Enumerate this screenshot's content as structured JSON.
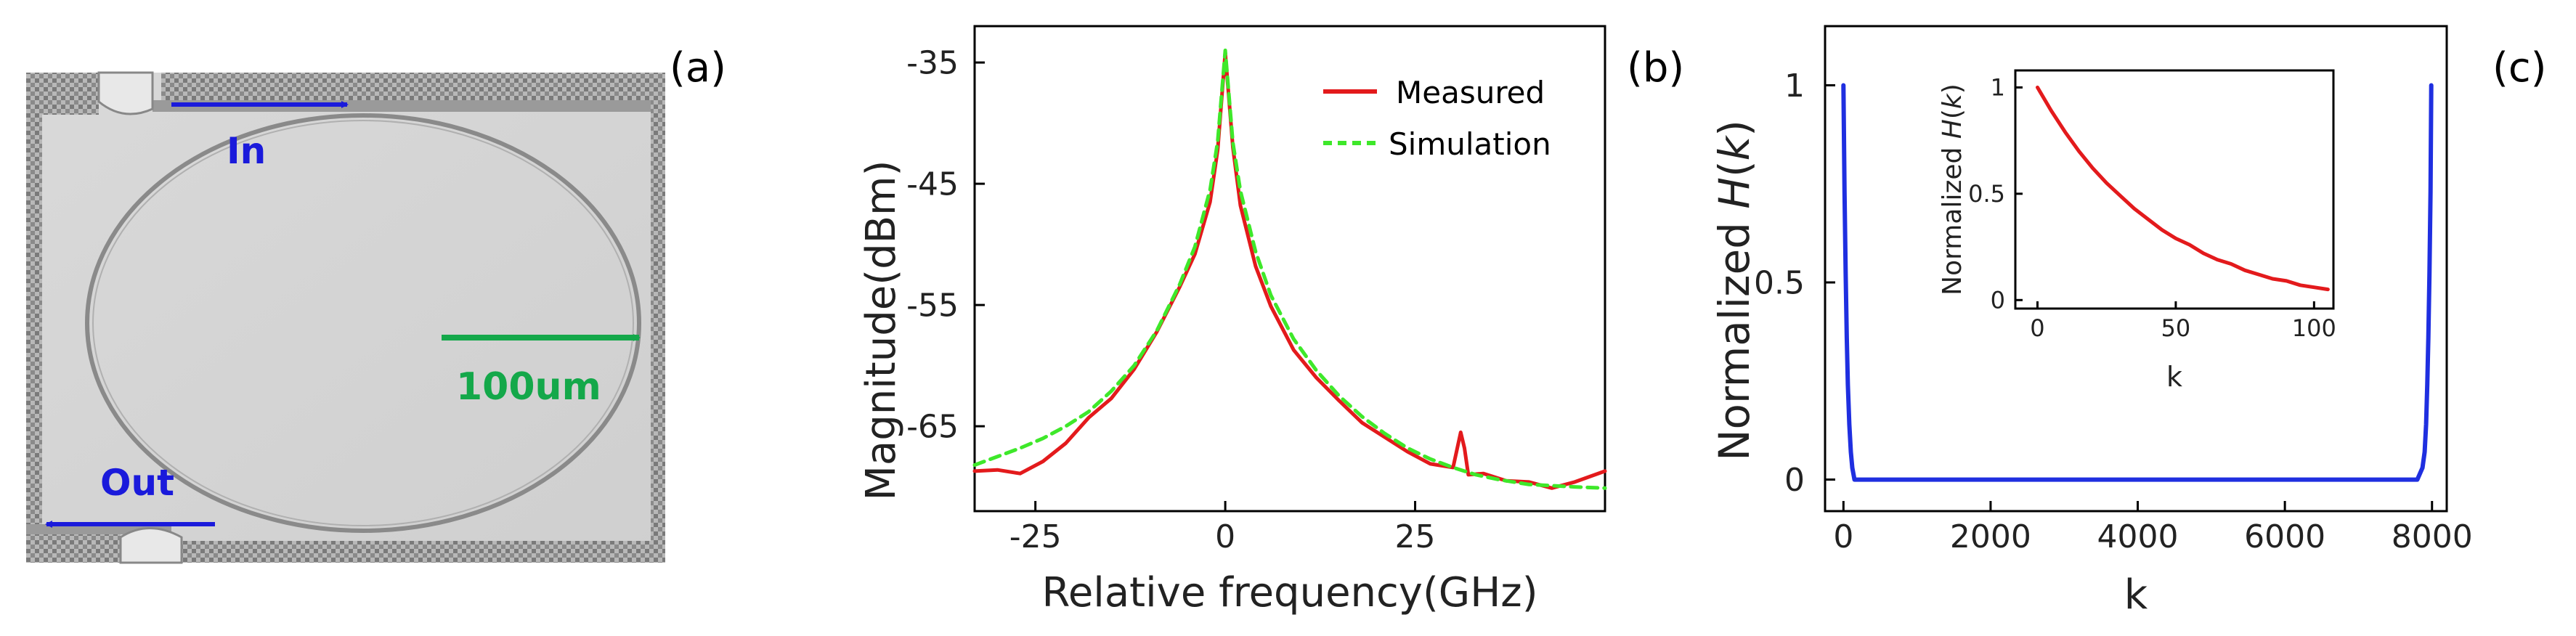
{
  "panels": {
    "a": {
      "label": "(a)",
      "in_label": "In",
      "out_label": "Out",
      "scale_label": "100um",
      "colors": {
        "in_arrow": "#1a1adb",
        "out_arrow": "#1a1adb",
        "scale_arrow": "#14a84a"
      }
    },
    "b": {
      "label": "(b)"
    },
    "c": {
      "label": "(c)"
    }
  },
  "chart_data": [
    {
      "type": "line",
      "title": "",
      "xlabel": "Relative frequency(GHz)",
      "ylabel": "Magnitude(dBm)",
      "xlim": [
        -33,
        50
      ],
      "ylim": [
        -72,
        -32
      ],
      "xticks": [
        -25,
        0,
        25
      ],
      "xtick_labels": [
        "-25",
        "0",
        "25"
      ],
      "yticks": [
        -35,
        -45,
        -55,
        -65
      ],
      "ytick_labels": [
        "-35",
        "-45",
        "-55",
        "-65"
      ],
      "legend_position": "top-right",
      "series": [
        {
          "name": "Measured",
          "color": "#e31a1c",
          "style": "solid",
          "x": [
            -33,
            -30,
            -27,
            -24,
            -21,
            -18,
            -15,
            -12,
            -9,
            -6,
            -4,
            -2,
            -1,
            0,
            1,
            2,
            4,
            6,
            9,
            12,
            15,
            18,
            21,
            24,
            27,
            30,
            31,
            31.5,
            32,
            34,
            37,
            40,
            43,
            46,
            50
          ],
          "y": [
            -68.7,
            -68.6,
            -68.9,
            -67.9,
            -66.4,
            -64.3,
            -62.7,
            -60.3,
            -57.2,
            -53.5,
            -50.8,
            -46.5,
            -42.2,
            -34.2,
            -42.0,
            -46.8,
            -51.8,
            -55.1,
            -58.7,
            -61.0,
            -62.9,
            -64.7,
            -65.9,
            -67.1,
            -68.1,
            -68.4,
            -65.5,
            -66.8,
            -69.0,
            -68.9,
            -69.5,
            -69.6,
            -70.1,
            -69.6,
            -68.7
          ]
        },
        {
          "name": "Simulation",
          "color": "#3ee82a",
          "style": "dashed",
          "x": [
            -33,
            -30,
            -27,
            -24,
            -21,
            -18,
            -15,
            -12,
            -9,
            -6,
            -4,
            -2,
            -1,
            0,
            1,
            2,
            4,
            6,
            9,
            12,
            15,
            18,
            21,
            24,
            27,
            30,
            33,
            36,
            40,
            43,
            46,
            50
          ],
          "y": [
            -68.2,
            -67.5,
            -66.8,
            -66.0,
            -65.0,
            -63.8,
            -62.1,
            -60.0,
            -57.1,
            -53.3,
            -50.2,
            -45.5,
            -41.5,
            -34.0,
            -41.6,
            -45.6,
            -50.6,
            -54.2,
            -57.8,
            -60.4,
            -62.5,
            -64.2,
            -65.6,
            -66.8,
            -67.7,
            -68.4,
            -69.0,
            -69.4,
            -69.8,
            -69.9,
            -70.0,
            -70.1
          ]
        }
      ]
    },
    {
      "type": "line",
      "title": "",
      "xlabel": "k",
      "ylabel": "Normalized H(k)",
      "ylabel_prefix": "Normalized ",
      "ylabel_var": "H",
      "ylabel_paren_open": "(",
      "ylabel_arg": "k",
      "ylabel_paren_close": ")",
      "xlim": [
        -250,
        8200
      ],
      "ylim": [
        -0.08,
        1.15
      ],
      "xticks": [
        0,
        2000,
        4000,
        6000,
        8000
      ],
      "xtick_labels": [
        "0",
        "2000",
        "4000",
        "6000",
        "8000"
      ],
      "yticks": [
        0,
        0.5,
        1
      ],
      "ytick_labels": [
        "0",
        "0.5",
        "1"
      ],
      "series": [
        {
          "name": "H(k)",
          "color": "#1f2fe0",
          "x": [
            0,
            15,
            30,
            45,
            60,
            80,
            100,
            120,
            150,
            400,
            2000,
            4000,
            6000,
            7600,
            7800,
            7870,
            7900,
            7920,
            7935,
            7950,
            7965,
            7980,
            7990
          ],
          "y": [
            1.0,
            0.73,
            0.52,
            0.36,
            0.24,
            0.14,
            0.07,
            0.03,
            0.0,
            0.0,
            0.0,
            0.0,
            0.0,
            0.0,
            0.0,
            0.03,
            0.07,
            0.14,
            0.24,
            0.36,
            0.52,
            0.73,
            1.0
          ]
        }
      ]
    },
    {
      "type": "line",
      "title": "",
      "xlabel": "k",
      "ylabel": "Normalized H(k)",
      "ylabel_prefix": "Normalized ",
      "ylabel_var": "H",
      "ylabel_paren_open": "(",
      "ylabel_arg": "k",
      "ylabel_paren_close": ")",
      "xlim": [
        -8,
        107
      ],
      "ylim": [
        -0.04,
        1.08
      ],
      "xticks": [
        0,
        50,
        100
      ],
      "xtick_labels": [
        "0",
        "50",
        "100"
      ],
      "yticks": [
        0,
        0.5,
        1
      ],
      "ytick_labels": [
        "0",
        "0.5",
        "1"
      ],
      "series": [
        {
          "name": "H(k) inset",
          "color": "#e31a1c",
          "x": [
            0,
            5,
            10,
            15,
            20,
            25,
            30,
            35,
            40,
            45,
            50,
            55,
            60,
            65,
            70,
            75,
            80,
            85,
            90,
            95,
            100,
            105
          ],
          "y": [
            1.0,
            0.89,
            0.79,
            0.7,
            0.62,
            0.55,
            0.49,
            0.43,
            0.38,
            0.33,
            0.29,
            0.26,
            0.22,
            0.19,
            0.17,
            0.14,
            0.12,
            0.1,
            0.09,
            0.07,
            0.06,
            0.05
          ]
        }
      ]
    }
  ]
}
